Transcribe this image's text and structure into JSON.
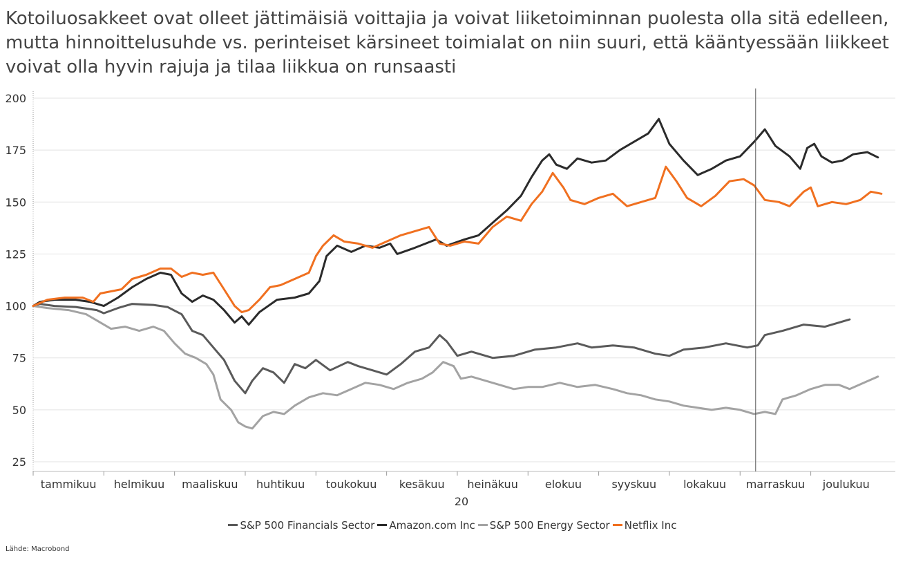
{
  "chart_data": {
    "type": "line",
    "title_lines": [
      "Kotoiluosakkeet ovat olleet jättimäisiä voittajia ja voivat liiketoiminnan puolesta olla sitä edelleen,",
      "mutta hinnoittelusuhde vs. perinteiset kärsineet toimialat on niin suuri, että kääntyessään liikkeet",
      "voivat olla hyvin rajuja ja tilaa liikkua on runsaasti"
    ],
    "x_tick_labels": [
      "tammikuu",
      "helmikuu",
      "maaliskuu",
      "huhtikuu",
      "toukokuu",
      "kesäkuu",
      "heinäkuu",
      "elokuu",
      "syyskuu",
      "lokakuu",
      "marraskuu",
      "joulukuu"
    ],
    "x_year_label": "20",
    "x_range": [
      0,
      11.6
    ],
    "ylim": [
      25,
      200
    ],
    "y_ticks": [
      25,
      50,
      75,
      100,
      125,
      150,
      175,
      200
    ],
    "grid": true,
    "legend_placement": "bottom",
    "marker_line_x": 10.22,
    "series": [
      {
        "name": "S&P 500 Financials Sector",
        "color": "#5a5a5a",
        "points": [
          [
            0,
            100
          ],
          [
            0.1,
            101
          ],
          [
            0.3,
            100
          ],
          [
            0.6,
            99.5
          ],
          [
            0.9,
            98
          ],
          [
            1.0,
            96.5
          ],
          [
            1.2,
            99
          ],
          [
            1.4,
            101
          ],
          [
            1.7,
            100.5
          ],
          [
            1.9,
            99.5
          ],
          [
            2.1,
            96
          ],
          [
            2.25,
            88
          ],
          [
            2.4,
            86
          ],
          [
            2.55,
            80
          ],
          [
            2.7,
            74
          ],
          [
            2.85,
            64
          ],
          [
            3.0,
            58
          ],
          [
            3.1,
            64
          ],
          [
            3.25,
            70
          ],
          [
            3.4,
            68
          ],
          [
            3.55,
            63
          ],
          [
            3.7,
            72
          ],
          [
            3.85,
            70
          ],
          [
            4.0,
            74
          ],
          [
            4.2,
            69
          ],
          [
            4.45,
            73
          ],
          [
            4.6,
            71
          ],
          [
            4.8,
            69
          ],
          [
            5.0,
            67
          ],
          [
            5.2,
            72
          ],
          [
            5.4,
            78
          ],
          [
            5.6,
            80
          ],
          [
            5.75,
            86
          ],
          [
            5.85,
            83
          ],
          [
            6.0,
            76
          ],
          [
            6.2,
            78
          ],
          [
            6.5,
            75
          ],
          [
            6.8,
            76
          ],
          [
            7.1,
            79
          ],
          [
            7.4,
            80
          ],
          [
            7.7,
            82
          ],
          [
            7.9,
            80
          ],
          [
            8.2,
            81
          ],
          [
            8.5,
            80
          ],
          [
            8.8,
            77
          ],
          [
            9.0,
            76
          ],
          [
            9.2,
            79
          ],
          [
            9.5,
            80
          ],
          [
            9.8,
            82
          ],
          [
            10.1,
            80
          ],
          [
            10.25,
            81
          ],
          [
            10.35,
            86
          ],
          [
            10.6,
            88
          ],
          [
            10.9,
            91
          ],
          [
            11.2,
            90
          ],
          [
            11.55,
            93.5
          ]
        ]
      },
      {
        "name": "Amazon.com Inc",
        "color": "#2b2b2b",
        "points": [
          [
            0,
            100
          ],
          [
            0.1,
            102
          ],
          [
            0.3,
            103
          ],
          [
            0.6,
            103
          ],
          [
            0.8,
            102
          ],
          [
            1.0,
            100
          ],
          [
            1.2,
            104
          ],
          [
            1.4,
            109
          ],
          [
            1.6,
            113
          ],
          [
            1.8,
            116
          ],
          [
            1.95,
            115
          ],
          [
            2.1,
            106
          ],
          [
            2.25,
            102
          ],
          [
            2.4,
            105
          ],
          [
            2.55,
            103
          ],
          [
            2.7,
            98
          ],
          [
            2.85,
            92
          ],
          [
            2.95,
            95
          ],
          [
            3.05,
            91
          ],
          [
            3.2,
            97
          ],
          [
            3.45,
            103
          ],
          [
            3.7,
            104
          ],
          [
            3.9,
            106
          ],
          [
            4.05,
            112
          ],
          [
            4.15,
            124
          ],
          [
            4.3,
            129
          ],
          [
            4.5,
            126
          ],
          [
            4.7,
            129
          ],
          [
            4.9,
            128
          ],
          [
            5.05,
            130
          ],
          [
            5.15,
            125
          ],
          [
            5.4,
            128
          ],
          [
            5.7,
            132
          ],
          [
            5.85,
            129
          ],
          [
            6.1,
            132
          ],
          [
            6.3,
            134
          ],
          [
            6.5,
            140
          ],
          [
            6.7,
            146
          ],
          [
            6.9,
            153
          ],
          [
            7.05,
            162
          ],
          [
            7.2,
            170
          ],
          [
            7.3,
            173
          ],
          [
            7.4,
            168
          ],
          [
            7.55,
            166
          ],
          [
            7.7,
            171
          ],
          [
            7.9,
            169
          ],
          [
            8.1,
            170
          ],
          [
            8.3,
            175
          ],
          [
            8.5,
            179
          ],
          [
            8.7,
            183
          ],
          [
            8.85,
            190
          ],
          [
            9.0,
            178
          ],
          [
            9.2,
            170
          ],
          [
            9.4,
            163
          ],
          [
            9.6,
            166
          ],
          [
            9.8,
            170
          ],
          [
            10.0,
            172
          ],
          [
            10.2,
            179
          ],
          [
            10.35,
            185
          ],
          [
            10.5,
            177
          ],
          [
            10.7,
            172
          ],
          [
            10.85,
            166
          ],
          [
            10.95,
            176
          ],
          [
            11.05,
            178
          ],
          [
            11.15,
            172
          ],
          [
            11.3,
            169
          ],
          [
            11.45,
            170
          ],
          [
            11.6,
            173
          ],
          [
            11.8,
            174
          ],
          [
            11.95,
            171.5
          ]
        ]
      },
      {
        "name": "S&P 500 Energy Sector",
        "color": "#a3a3a3",
        "points": [
          [
            0,
            100
          ],
          [
            0.2,
            99
          ],
          [
            0.5,
            98
          ],
          [
            0.75,
            96
          ],
          [
            0.9,
            93
          ],
          [
            1.1,
            89
          ],
          [
            1.3,
            90
          ],
          [
            1.5,
            88
          ],
          [
            1.7,
            90
          ],
          [
            1.85,
            88
          ],
          [
            2.0,
            82
          ],
          [
            2.15,
            77
          ],
          [
            2.3,
            75
          ],
          [
            2.45,
            72
          ],
          [
            2.55,
            67
          ],
          [
            2.65,
            55
          ],
          [
            2.8,
            50
          ],
          [
            2.9,
            44
          ],
          [
            3.0,
            42
          ],
          [
            3.1,
            41
          ],
          [
            3.25,
            47
          ],
          [
            3.4,
            49
          ],
          [
            3.55,
            48
          ],
          [
            3.7,
            52
          ],
          [
            3.9,
            56
          ],
          [
            4.1,
            58
          ],
          [
            4.3,
            57
          ],
          [
            4.5,
            60
          ],
          [
            4.7,
            63
          ],
          [
            4.9,
            62
          ],
          [
            5.1,
            60
          ],
          [
            5.3,
            63
          ],
          [
            5.5,
            65
          ],
          [
            5.65,
            68
          ],
          [
            5.8,
            73
          ],
          [
            5.95,
            71
          ],
          [
            6.05,
            65
          ],
          [
            6.2,
            66
          ],
          [
            6.4,
            64
          ],
          [
            6.6,
            62
          ],
          [
            6.8,
            60
          ],
          [
            7.0,
            61
          ],
          [
            7.2,
            61
          ],
          [
            7.45,
            63
          ],
          [
            7.7,
            61
          ],
          [
            7.95,
            62
          ],
          [
            8.2,
            60
          ],
          [
            8.4,
            58
          ],
          [
            8.6,
            57
          ],
          [
            8.8,
            55
          ],
          [
            9.0,
            54
          ],
          [
            9.2,
            52
          ],
          [
            9.4,
            51
          ],
          [
            9.6,
            50
          ],
          [
            9.8,
            51
          ],
          [
            10.0,
            50
          ],
          [
            10.2,
            48
          ],
          [
            10.35,
            49
          ],
          [
            10.5,
            48
          ],
          [
            10.6,
            55
          ],
          [
            10.8,
            57
          ],
          [
            11.0,
            60
          ],
          [
            11.2,
            62
          ],
          [
            11.4,
            62
          ],
          [
            11.55,
            60
          ],
          [
            11.75,
            63
          ],
          [
            11.95,
            66
          ]
        ]
      },
      {
        "name": "Netflix Inc",
        "color": "#f07020",
        "points": [
          [
            0,
            100
          ],
          [
            0.2,
            103
          ],
          [
            0.45,
            104
          ],
          [
            0.7,
            104
          ],
          [
            0.85,
            102
          ],
          [
            0.95,
            106
          ],
          [
            1.1,
            107
          ],
          [
            1.25,
            108
          ],
          [
            1.4,
            113
          ],
          [
            1.6,
            115
          ],
          [
            1.8,
            118
          ],
          [
            1.95,
            118
          ],
          [
            2.1,
            114
          ],
          [
            2.25,
            116
          ],
          [
            2.4,
            115
          ],
          [
            2.55,
            116
          ],
          [
            2.7,
            108
          ],
          [
            2.85,
            100
          ],
          [
            2.95,
            97
          ],
          [
            3.05,
            98
          ],
          [
            3.2,
            103
          ],
          [
            3.35,
            109
          ],
          [
            3.5,
            110
          ],
          [
            3.7,
            113
          ],
          [
            3.9,
            116
          ],
          [
            4.0,
            124
          ],
          [
            4.1,
            129
          ],
          [
            4.25,
            134
          ],
          [
            4.4,
            131
          ],
          [
            4.6,
            130
          ],
          [
            4.8,
            128
          ],
          [
            5.0,
            131
          ],
          [
            5.2,
            134
          ],
          [
            5.4,
            136
          ],
          [
            5.6,
            138
          ],
          [
            5.75,
            130
          ],
          [
            5.9,
            129
          ],
          [
            6.1,
            131
          ],
          [
            6.3,
            130
          ],
          [
            6.5,
            138
          ],
          [
            6.7,
            143
          ],
          [
            6.9,
            141
          ],
          [
            7.05,
            149
          ],
          [
            7.2,
            155
          ],
          [
            7.35,
            164
          ],
          [
            7.5,
            157
          ],
          [
            7.6,
            151
          ],
          [
            7.8,
            149
          ],
          [
            8.0,
            152
          ],
          [
            8.2,
            154
          ],
          [
            8.4,
            148
          ],
          [
            8.6,
            150
          ],
          [
            8.8,
            152
          ],
          [
            8.95,
            167
          ],
          [
            9.1,
            160
          ],
          [
            9.25,
            152
          ],
          [
            9.45,
            148
          ],
          [
            9.65,
            153
          ],
          [
            9.85,
            160
          ],
          [
            10.05,
            161
          ],
          [
            10.2,
            158
          ],
          [
            10.35,
            151
          ],
          [
            10.55,
            150
          ],
          [
            10.7,
            148
          ],
          [
            10.9,
            155
          ],
          [
            11.0,
            157
          ],
          [
            11.1,
            148
          ],
          [
            11.3,
            150
          ],
          [
            11.5,
            149
          ],
          [
            11.7,
            151
          ],
          [
            11.85,
            155
          ],
          [
            12.0,
            154
          ]
        ]
      }
    ]
  },
  "source": "Lähde: Macrobond"
}
